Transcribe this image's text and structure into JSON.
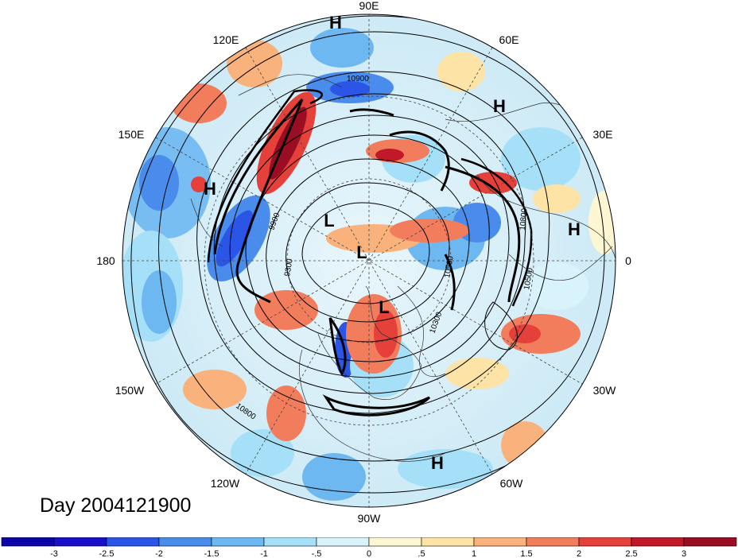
{
  "title": "Day 2004121900",
  "longitude_labels": [
    "90E",
    "120E",
    "60E",
    "150E",
    "30E",
    "180",
    "0",
    "150W",
    "30W",
    "120W",
    "60W",
    "90W"
  ],
  "pressure_labels": [
    "H",
    "H",
    "H",
    "H",
    "H",
    "L",
    "L",
    "L"
  ],
  "contour_labels": [
    "10900",
    "9900",
    "9300",
    "10800",
    "10300",
    "10800",
    "10500",
    "10500"
  ],
  "colorbar": {
    "colors": [
      "#1a0fc8",
      "#2b55e6",
      "#4a8cec",
      "#6eb8f2",
      "#a6e0f8",
      "#d8f3fb",
      "#fdf6d2",
      "#fde3a6",
      "#f9b27b",
      "#f17d5c",
      "#e6403a",
      "#c1192a",
      "#9b0d23"
    ],
    "ticks": [
      "-3",
      "-2.5",
      "-2",
      "-1.5",
      "-1",
      "-.5",
      "0",
      ".5",
      "1",
      "1.5",
      "2",
      "2.5",
      "3"
    ]
  }
}
